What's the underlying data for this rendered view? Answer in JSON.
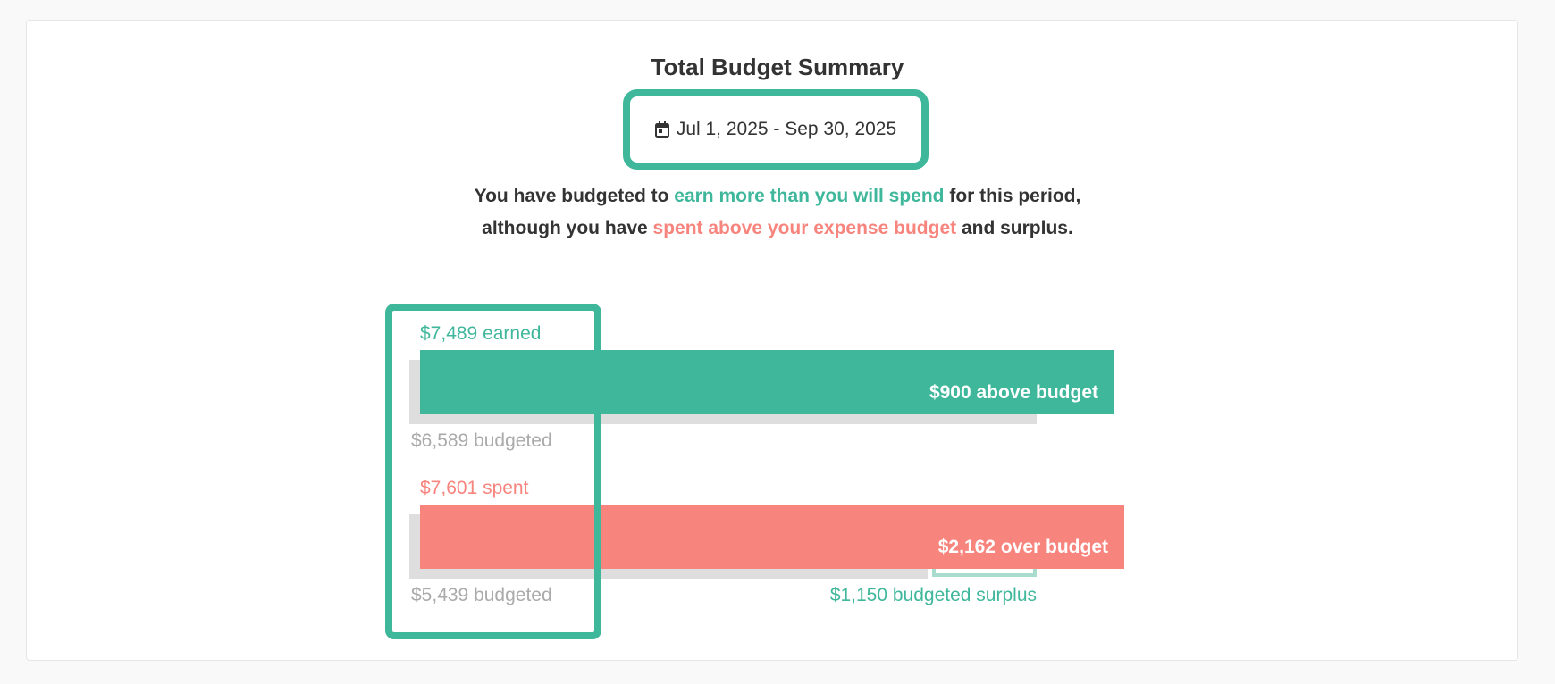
{
  "header": {
    "title": "Total Budget Summary",
    "date_range": "Jul 1, 2025 - Sep 30, 2025",
    "calendar_icon": "calendar-icon"
  },
  "summary": {
    "line1_a": "You have budgeted to ",
    "line1_b": "earn more than you will spend",
    "line1_c": " for this period,",
    "line2_a": "although you have ",
    "line2_b": "spent above your expense budget",
    "line2_c": " and surplus."
  },
  "income": {
    "actual_label": "$7,489 earned",
    "budget_label": "$6,589 budgeted",
    "diff_label": "$900 above budget",
    "actual": 7489,
    "budget": 6589
  },
  "expenses": {
    "actual_label": "$7,601 spent",
    "budget_label": "$5,439 budgeted",
    "diff_label": "$2,162 over budget",
    "surplus_label": "$1,150 budgeted surplus",
    "actual": 7601,
    "budget": 5439,
    "surplus": 1150
  },
  "colors": {
    "green": "#3fb79b",
    "red": "#f8847e",
    "grey": "#dedede"
  }
}
